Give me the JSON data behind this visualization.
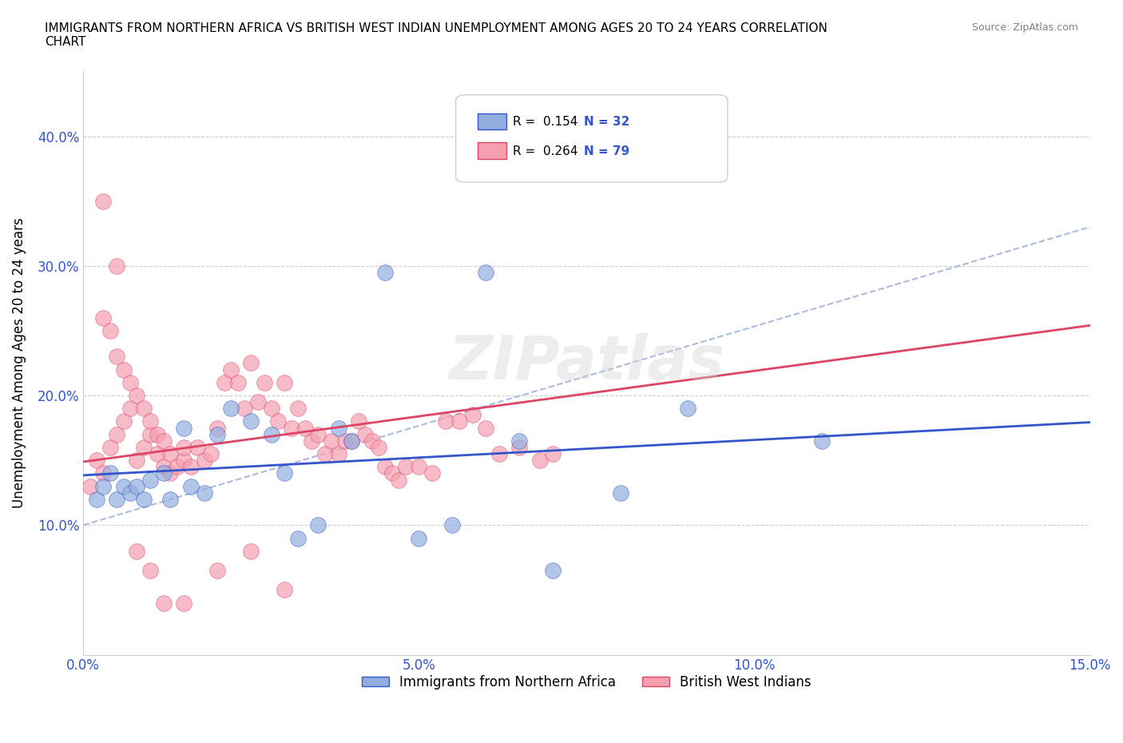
{
  "title": "IMMIGRANTS FROM NORTHERN AFRICA VS BRITISH WEST INDIAN UNEMPLOYMENT AMONG AGES 20 TO 24 YEARS CORRELATION\nCHART",
  "source": "Source: ZipAtlas.com",
  "xlabel": "",
  "ylabel": "Unemployment Among Ages 20 to 24 years",
  "xlim": [
    0.0,
    0.15
  ],
  "ylim": [
    0.0,
    0.45
  ],
  "xticks": [
    0.0,
    0.05,
    0.1,
    0.15
  ],
  "xticklabels": [
    "0.0%",
    "5.0%",
    "10.0%",
    "15.0%"
  ],
  "yticks": [
    0.0,
    0.1,
    0.2,
    0.3,
    0.4
  ],
  "yticklabels": [
    "",
    "10.0%",
    "20.0%",
    "30.0%",
    "40.0%"
  ],
  "blue_color": "#92AEDE",
  "pink_color": "#F4A0B0",
  "blue_line_color": "#3355CC",
  "pink_line_color": "#DD4466",
  "dashed_line_color": "#AABBDD",
  "legend_R1": "R = 0.154",
  "legend_N1": "N = 32",
  "legend_R2": "R = 0.264",
  "legend_N2": "N = 79",
  "legend_label1": "Immigrants from Northern Africa",
  "legend_label2": "British West Indians",
  "watermark": "ZIPatlas",
  "blue_x": [
    0.002,
    0.003,
    0.004,
    0.005,
    0.006,
    0.007,
    0.008,
    0.009,
    0.01,
    0.012,
    0.013,
    0.015,
    0.016,
    0.018,
    0.02,
    0.022,
    0.025,
    0.028,
    0.03,
    0.032,
    0.035,
    0.038,
    0.04,
    0.045,
    0.05,
    0.055,
    0.06,
    0.065,
    0.07,
    0.08,
    0.09,
    0.11
  ],
  "blue_y": [
    0.12,
    0.13,
    0.14,
    0.12,
    0.13,
    0.125,
    0.13,
    0.12,
    0.135,
    0.14,
    0.12,
    0.175,
    0.13,
    0.125,
    0.17,
    0.19,
    0.18,
    0.17,
    0.14,
    0.09,
    0.1,
    0.175,
    0.165,
    0.295,
    0.09,
    0.1,
    0.295,
    0.165,
    0.065,
    0.125,
    0.19,
    0.165
  ],
  "pink_x": [
    0.001,
    0.002,
    0.003,
    0.003,
    0.004,
    0.004,
    0.005,
    0.005,
    0.006,
    0.006,
    0.007,
    0.007,
    0.008,
    0.008,
    0.009,
    0.009,
    0.01,
    0.01,
    0.011,
    0.011,
    0.012,
    0.012,
    0.013,
    0.013,
    0.014,
    0.015,
    0.015,
    0.016,
    0.017,
    0.018,
    0.019,
    0.02,
    0.021,
    0.022,
    0.023,
    0.024,
    0.025,
    0.026,
    0.027,
    0.028,
    0.029,
    0.03,
    0.031,
    0.032,
    0.033,
    0.034,
    0.035,
    0.036,
    0.037,
    0.038,
    0.039,
    0.04,
    0.041,
    0.042,
    0.043,
    0.044,
    0.045,
    0.046,
    0.047,
    0.048,
    0.05,
    0.052,
    0.054,
    0.056,
    0.058,
    0.06,
    0.062,
    0.065,
    0.068,
    0.07,
    0.003,
    0.005,
    0.008,
    0.01,
    0.012,
    0.015,
    0.02,
    0.025,
    0.03
  ],
  "pink_y": [
    0.13,
    0.15,
    0.14,
    0.26,
    0.16,
    0.25,
    0.17,
    0.23,
    0.18,
    0.22,
    0.19,
    0.21,
    0.15,
    0.2,
    0.16,
    0.19,
    0.17,
    0.18,
    0.155,
    0.17,
    0.145,
    0.165,
    0.14,
    0.155,
    0.145,
    0.15,
    0.16,
    0.145,
    0.16,
    0.15,
    0.155,
    0.175,
    0.21,
    0.22,
    0.21,
    0.19,
    0.225,
    0.195,
    0.21,
    0.19,
    0.18,
    0.21,
    0.175,
    0.19,
    0.175,
    0.165,
    0.17,
    0.155,
    0.165,
    0.155,
    0.165,
    0.165,
    0.18,
    0.17,
    0.165,
    0.16,
    0.145,
    0.14,
    0.135,
    0.145,
    0.145,
    0.14,
    0.18,
    0.18,
    0.185,
    0.175,
    0.155,
    0.16,
    0.15,
    0.155,
    0.35,
    0.3,
    0.08,
    0.065,
    0.04,
    0.04,
    0.065,
    0.08,
    0.05
  ]
}
